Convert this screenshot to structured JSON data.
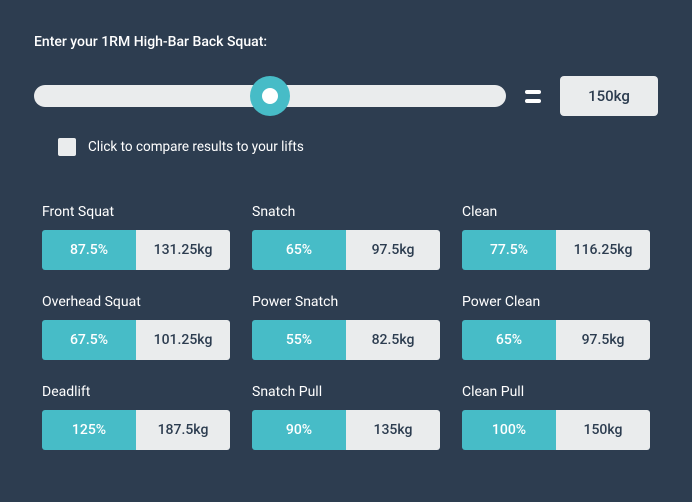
{
  "prompt": "Enter your 1RM High-Bar Back Squat:",
  "slider": {
    "value_display": "150kg",
    "thumb_position_pct": 50
  },
  "compare": {
    "label": "Click to compare results to your lifts",
    "checked": false
  },
  "lifts": [
    {
      "name": "Front Squat",
      "pct": "87.5%",
      "weight": "131.25kg"
    },
    {
      "name": "Snatch",
      "pct": "65%",
      "weight": "97.5kg"
    },
    {
      "name": "Clean",
      "pct": "77.5%",
      "weight": "116.25kg"
    },
    {
      "name": "Overhead Squat",
      "pct": "67.5%",
      "weight": "101.25kg"
    },
    {
      "name": "Power Snatch",
      "pct": "55%",
      "weight": "82.5kg"
    },
    {
      "name": "Power Clean",
      "pct": "65%",
      "weight": "97.5kg"
    },
    {
      "name": "Deadlift",
      "pct": "125%",
      "weight": "187.5kg"
    },
    {
      "name": "Snatch Pull",
      "pct": "90%",
      "weight": "135kg"
    },
    {
      "name": "Clean Pull",
      "pct": "100%",
      "weight": "150kg"
    }
  ],
  "colors": {
    "background": "#2d3d50",
    "accent": "#47bcc7",
    "neutral": "#eaeced",
    "text_light": "#ffffff",
    "text_dark": "#2d3d50"
  }
}
